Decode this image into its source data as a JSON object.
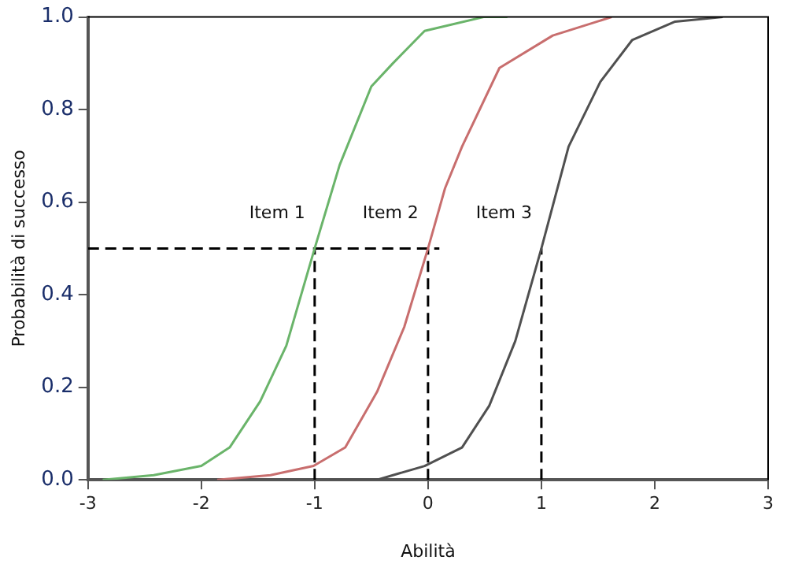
{
  "chart_data": {
    "type": "line",
    "xlabel": "Abilità",
    "ylabel": "Probabilità di successo",
    "xlim": [
      -3,
      3
    ],
    "xticks": [
      -3,
      -2,
      -1,
      0,
      1,
      2,
      3
    ],
    "ylim": [
      0,
      1
    ],
    "yticks": [
      {
        "value": 0,
        "label": "0.0"
      },
      {
        "value": 0.2,
        "label": "0.2"
      },
      {
        "value": 0.4,
        "label": "0.4"
      },
      {
        "value": 0.6,
        "label": "0.6"
      },
      {
        "value": 0.8,
        "label": "0.8"
      },
      {
        "value": 1,
        "label": "1.0"
      }
    ],
    "grid": false,
    "legend": false,
    "marker": "none",
    "series": [
      {
        "name": "Item 1",
        "color": "#6ab46a",
        "x": [
          -2.87,
          -2.42,
          -2.0,
          -1.75,
          -1.48,
          -1.25,
          -1.0,
          -0.78,
          -0.5,
          -0.31,
          -0.03,
          0.49,
          0.7
        ],
        "values": [
          0,
          0.01,
          0.03,
          0.07,
          0.17,
          0.29,
          0.5,
          0.68,
          0.85,
          0.9,
          0.97,
          1.0,
          1.0
        ]
      },
      {
        "name": "Item 2",
        "color": "#c86e6e",
        "x": [
          -1.86,
          -1.39,
          -1.01,
          -0.73,
          -0.45,
          -0.21,
          0,
          0.15,
          0.3,
          0.63,
          1.1,
          1.62
        ],
        "values": [
          0,
          0.01,
          0.03,
          0.07,
          0.19,
          0.33,
          0.5,
          0.63,
          0.72,
          0.89,
          0.96,
          1.0
        ]
      },
      {
        "name": "Item 3",
        "color": "#505050",
        "x": [
          -0.87,
          -0.45,
          -0.03,
          0.3,
          0.54,
          0.77,
          1.0,
          1.24,
          1.52,
          1.8,
          2.18,
          2.6
        ],
        "values": [
          0,
          0,
          0.03,
          0.07,
          0.16,
          0.3,
          0.5,
          0.72,
          0.86,
          0.95,
          0.99,
          1.0
        ]
      },
      {
        "color": "#000000",
        "line_style": "dashed",
        "x": [
          -3,
          0.1
        ],
        "values": [
          0.5,
          0.5
        ]
      },
      {
        "color": "#000000",
        "line_style": "dashed",
        "x": [
          -1,
          -1
        ],
        "values": [
          0,
          0.5
        ]
      },
      {
        "color": "#000000",
        "line_style": "dashed",
        "x": [
          0,
          0
        ],
        "values": [
          0,
          0.5
        ]
      },
      {
        "color": "#000000",
        "line_style": "dashed",
        "x": [
          1,
          1
        ],
        "values": [
          0,
          0.5
        ]
      }
    ]
  }
}
